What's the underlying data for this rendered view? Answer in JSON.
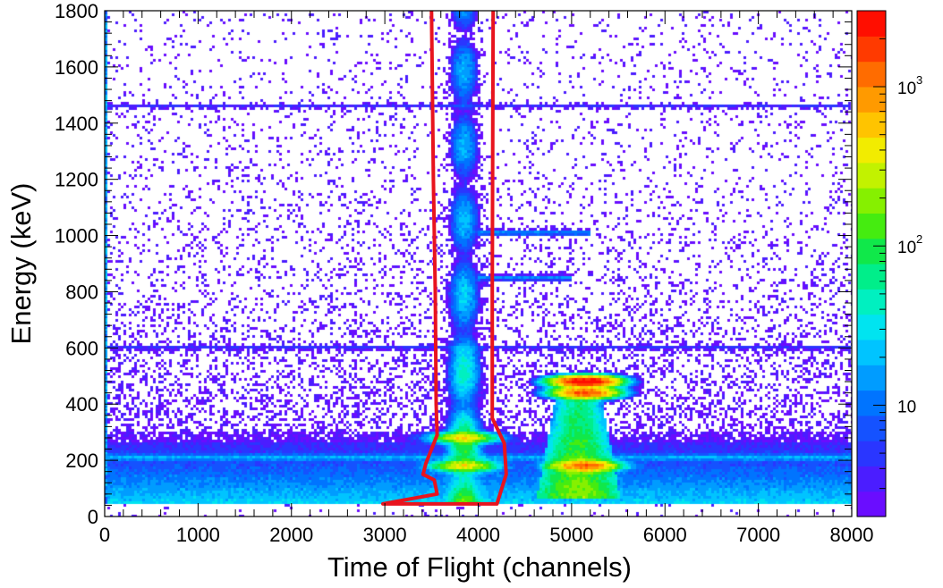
{
  "chart_data": {
    "type": "heatmap",
    "title": "",
    "xlabel": "Time of Flight (channels)",
    "ylabel": "Energy (keV)",
    "xlim": [
      0,
      8000
    ],
    "ylim": [
      0,
      1800
    ],
    "x_ticks": [
      0,
      1000,
      2000,
      3000,
      4000,
      5000,
      6000,
      7000,
      8000
    ],
    "y_ticks": [
      0,
      200,
      400,
      600,
      800,
      1000,
      1200,
      1400,
      1600,
      1800
    ],
    "z_scale": "log",
    "zlim": [
      2,
      3000
    ],
    "colorbar_ticks": [
      {
        "value": 10,
        "label": "10",
        "exp": ""
      },
      {
        "value": 100,
        "label": "10",
        "exp": "2"
      },
      {
        "value": 1000,
        "label": "10",
        "exp": "3"
      }
    ],
    "palette": [
      "#6a0dff",
      "#4b1dff",
      "#2a36ff",
      "#1552ff",
      "#0074ff",
      "#009cff",
      "#00c4ff",
      "#00e4f0",
      "#00f0c0",
      "#00ee8a",
      "#10e84a",
      "#45ec10",
      "#86f000",
      "#c2f200",
      "#f2ec00",
      "#ffc400",
      "#ff9a00",
      "#ff6c00",
      "#ff3a00",
      "#ff0e00"
    ],
    "grid": false,
    "features": {
      "vertical_band": {
        "x_center": 3850,
        "x_halfwidth": 150,
        "y_range": [
          50,
          1800
        ],
        "intensity": "high"
      },
      "right_blob": {
        "x_range": [
          4700,
          5450
        ],
        "y_range": [
          60,
          420
        ],
        "intensity": "high"
      },
      "hot_spots": [
        {
          "x": 5150,
          "y": 480,
          "level": 3000
        },
        {
          "x": 5150,
          "y": 440,
          "level": 1500
        },
        {
          "x": 5150,
          "y": 180,
          "level": 1200
        },
        {
          "x": 3850,
          "y": 280,
          "level": 400
        },
        {
          "x": 3850,
          "y": 180,
          "level": 400
        }
      ],
      "horizontal_lines": [
        {
          "y": 1460,
          "x_range": [
            0,
            8000
          ],
          "intensity": "low"
        },
        {
          "y": 1010,
          "x_range": [
            4000,
            5200
          ],
          "intensity": "medium"
        },
        {
          "y": 850,
          "x_range": [
            4000,
            5000
          ],
          "intensity": "medium"
        },
        {
          "y": 600,
          "x_range": [
            0,
            8000
          ],
          "intensity": "low"
        },
        {
          "y": 210,
          "x_range": [
            0,
            8000
          ],
          "intensity": "medium"
        }
      ]
    },
    "cut_contour": {
      "color": "#e8141e",
      "points": [
        [
          3500,
          1800
        ],
        [
          3520,
          1200
        ],
        [
          3540,
          800
        ],
        [
          3550,
          400
        ],
        [
          3560,
          290
        ],
        [
          3440,
          190
        ],
        [
          3410,
          150
        ],
        [
          3530,
          130
        ],
        [
          3560,
          80
        ],
        [
          2980,
          45
        ],
        [
          4200,
          45
        ],
        [
          4300,
          150
        ],
        [
          4280,
          260
        ],
        [
          4150,
          350
        ],
        [
          4150,
          800
        ],
        [
          4160,
          1800
        ]
      ]
    }
  }
}
